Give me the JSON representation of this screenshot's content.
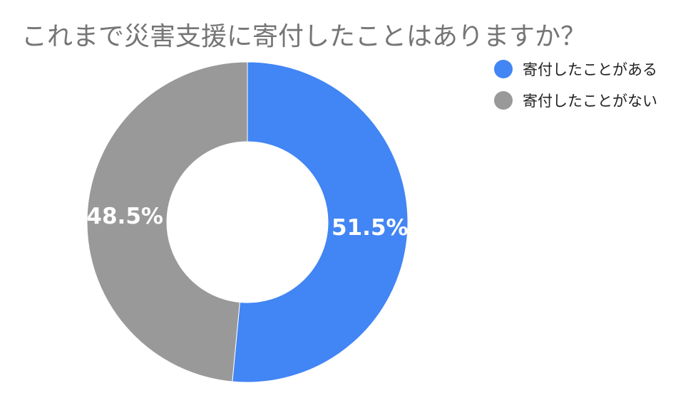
{
  "chart_data": {
    "type": "pie",
    "title": "これまで災害支援に寄付したことはありますか？",
    "series": [
      {
        "name": "寄付したことがある",
        "value": 51.5,
        "label": "51.5%",
        "color": "#4285f4"
      },
      {
        "name": "寄付したことがない",
        "value": 48.5,
        "label": "48.5%",
        "color": "#999999"
      }
    ],
    "donut": true,
    "legend_position": "top-right"
  }
}
